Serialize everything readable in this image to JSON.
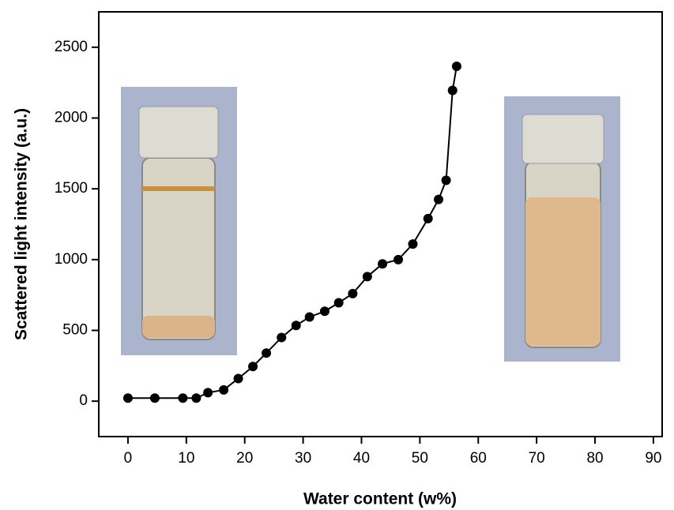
{
  "chart_data": {
    "type": "line",
    "xlabel": "Water content (w%)",
    "ylabel": "Scattered light intensity (a.u.)",
    "x": [
      0,
      4.6,
      9.4,
      11.7,
      13.7,
      16.4,
      18.9,
      21.4,
      23.7,
      26.3,
      28.8,
      31.1,
      33.7,
      36.1,
      38.5,
      41,
      43.6,
      46.3,
      48.8,
      51.4,
      53.2,
      54.5,
      55.6,
      56.3
    ],
    "series": [
      {
        "color": "#000000",
        "values": [
          22,
          22,
          22,
          22,
          60,
          80,
          160,
          245,
          340,
          450,
          535,
          595,
          635,
          695,
          760,
          880,
          970,
          1000,
          1110,
          1290,
          1425,
          1560,
          2195,
          2365
        ]
      }
    ],
    "xlim": [
      -5,
      91.5
    ],
    "ylim": [
      -250,
      2750
    ],
    "xticks": [
      0,
      10,
      20,
      30,
      40,
      50,
      60,
      70,
      80,
      90
    ],
    "yticks": [
      0,
      500,
      1000,
      1500,
      2000,
      2500
    ]
  }
}
